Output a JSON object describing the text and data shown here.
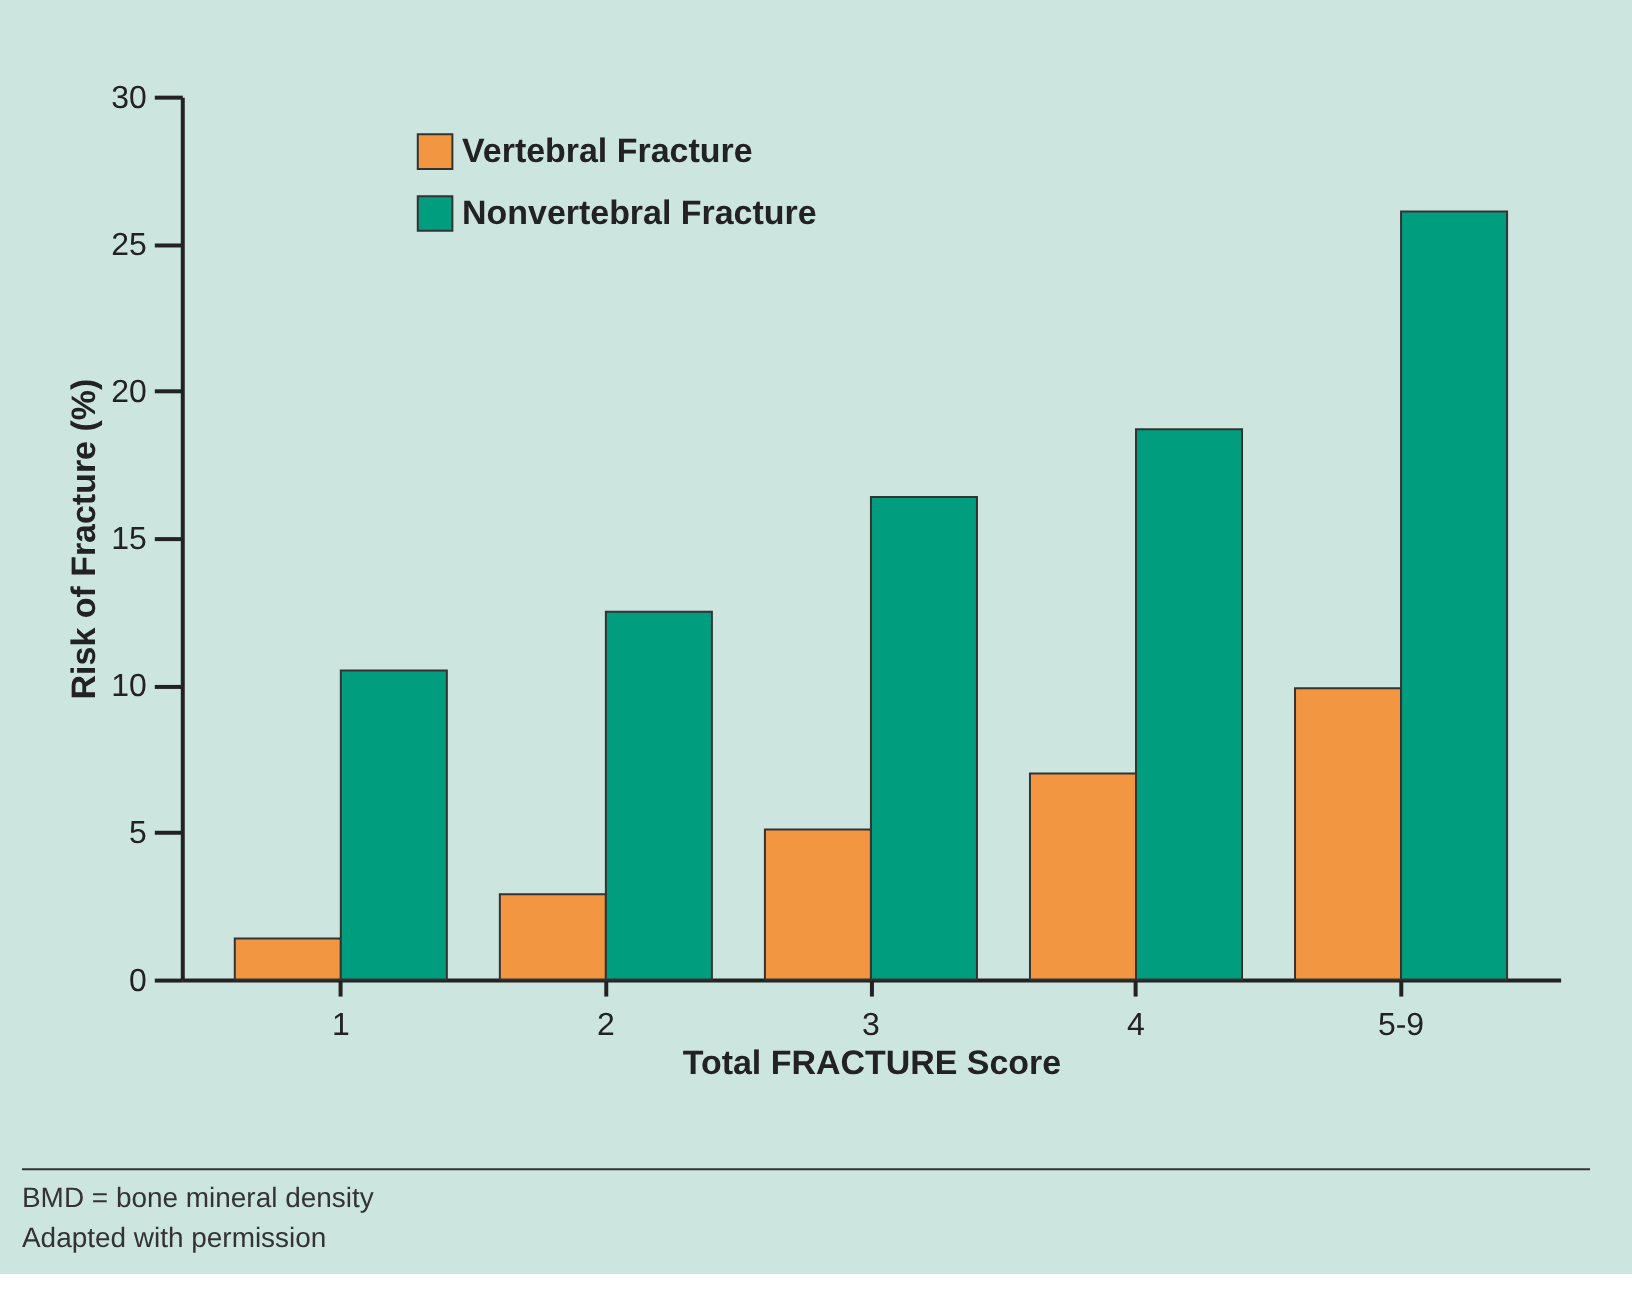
{
  "chart_data": {
    "type": "bar",
    "xlabel": "Total FRACTURE Score",
    "ylabel": "Risk of Fracture (%)",
    "categories": [
      "1",
      "2",
      "3",
      "4",
      "5-9"
    ],
    "series": [
      {
        "name": "Vertebral Fracture",
        "color": "#f39642",
        "values": [
          1.4,
          2.9,
          5.1,
          7.0,
          9.9
        ]
      },
      {
        "name": "Nonvertebral Fracture",
        "color": "#009e7f",
        "values": [
          10.5,
          12.5,
          16.4,
          18.7,
          26.1
        ]
      }
    ],
    "ylim": [
      0,
      30
    ],
    "yticks": [
      0,
      5,
      10,
      15,
      20,
      25,
      30
    ],
    "grid": false,
    "legend": "top left",
    "annotations": [
      "BMD = bone mineral density",
      "Adapted with permission"
    ]
  }
}
